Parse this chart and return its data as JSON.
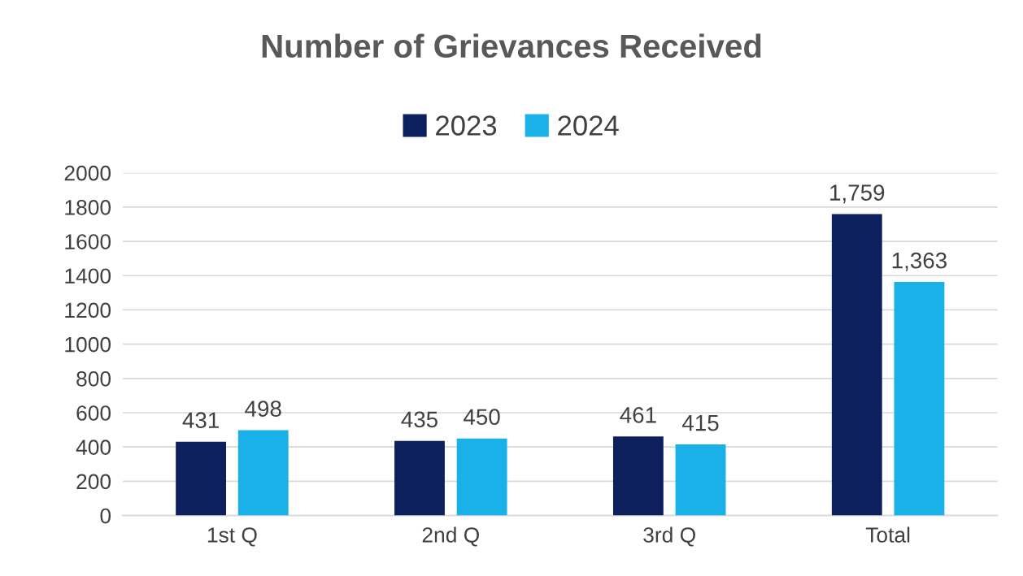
{
  "chart_data": {
    "type": "bar",
    "title": "Number of Grievances Received",
    "categories": [
      "1st Q",
      "2nd Q",
      "3rd Q",
      "Total"
    ],
    "series": [
      {
        "name": "2023",
        "color": "#0d1f5c",
        "values": [
          431,
          435,
          461,
          1759
        ],
        "value_labels": [
          "431",
          "435",
          "461",
          "1,759"
        ]
      },
      {
        "name": "2024",
        "color": "#1ab0e8",
        "values": [
          498,
          450,
          415,
          1363
        ],
        "value_labels": [
          "498",
          "450",
          "415",
          "1,363"
        ]
      }
    ],
    "ylim": [
      0,
      2000
    ],
    "yticks": [
      0,
      200,
      400,
      600,
      800,
      1000,
      1200,
      1400,
      1600,
      1800,
      2000
    ],
    "grid": "y",
    "legend": "top"
  }
}
